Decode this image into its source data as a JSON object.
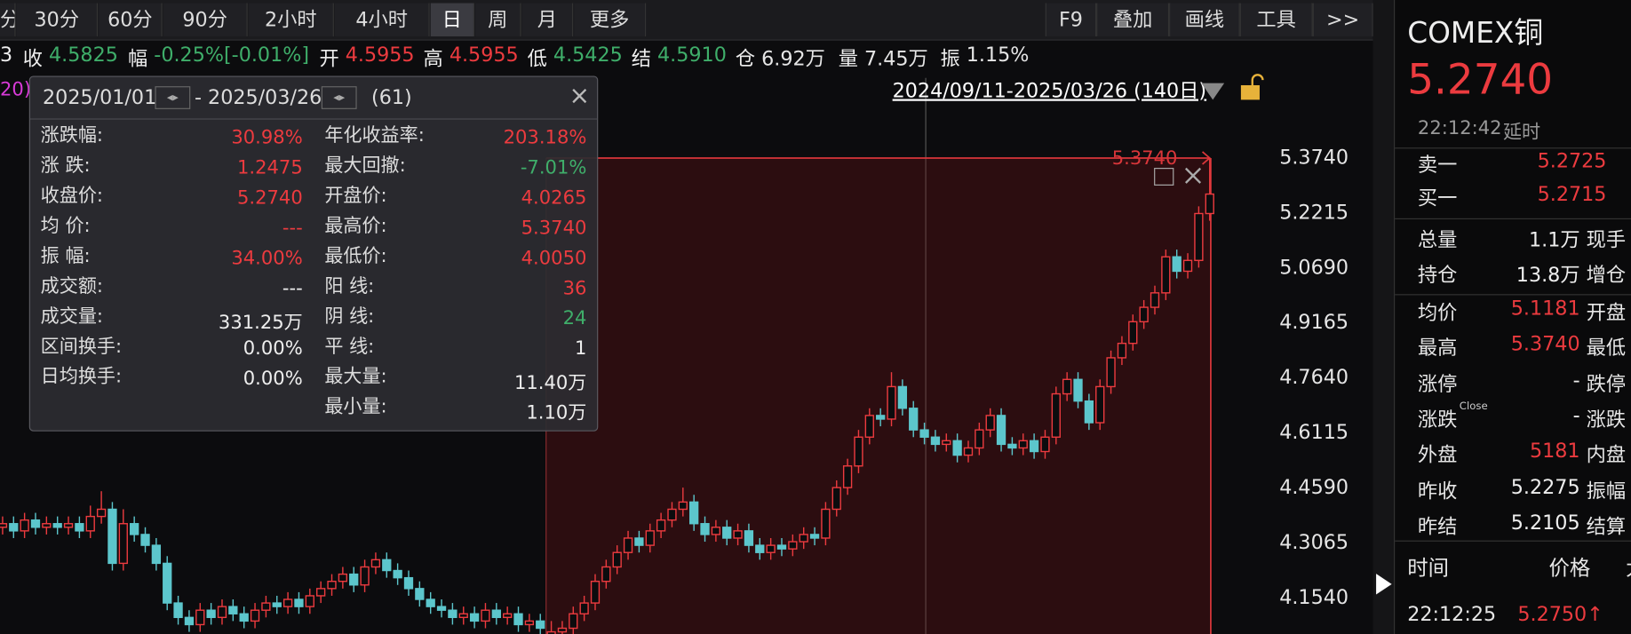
{
  "toolbar": {
    "periods": [
      "分",
      "30分",
      "60分",
      "90分",
      "2小时",
      "4小时",
      "日",
      "周",
      "月",
      "更多"
    ],
    "selected": 6,
    "tools": [
      "F9",
      "叠加",
      "画线",
      "工具",
      ">>"
    ]
  },
  "info_bar": {
    "prefix": "3",
    "items": [
      {
        "label": "收",
        "value": "4.5825",
        "color": "#3fae6a"
      },
      {
        "label": "幅",
        "value": "-0.25%[-0.01%]",
        "color": "#3fae6a"
      },
      {
        "label": "开",
        "value": "4.5955",
        "color": "#ec3b3f"
      },
      {
        "label": "高",
        "value": "4.5955",
        "color": "#ec3b3f"
      },
      {
        "label": "低",
        "value": "4.5425",
        "color": "#3fae6a"
      },
      {
        "label": "结",
        "value": "4.5910",
        "color": "#3fae6a"
      },
      {
        "label": "仓",
        "value": "6.92万",
        "color": "#e6e6e6"
      },
      {
        "label": "量",
        "value": "7.45万",
        "color": "#e6e6e6"
      },
      {
        "label": "振",
        "value": "1.15%",
        "color": "#e6e6e6"
      }
    ]
  },
  "ma_label": "20)",
  "chart_data": {
    "type": "candlestick",
    "range_label": "2024/09/11-2025/03/26 (140日)",
    "up_color": "#ec3b3f",
    "down_color": "#5cc6cc",
    "ylim": [
      4.054,
      5.596
    ],
    "yticks": [
      {
        "value": 5.374,
        "label": "5.3740"
      },
      {
        "value": 5.2215,
        "label": "5.2215"
      },
      {
        "value": 5.069,
        "label": "5.0690"
      },
      {
        "value": 4.9165,
        "label": "4.9165"
      },
      {
        "value": 4.764,
        "label": "4.7640"
      },
      {
        "value": 4.6115,
        "label": "4.6115"
      },
      {
        "value": 4.459,
        "label": "4.4590"
      },
      {
        "value": 4.3065,
        "label": "4.3065"
      },
      {
        "value": 4.154,
        "label": "4.1540"
      }
    ],
    "max_marker": {
      "value": 5.374,
      "label": "5.3740"
    },
    "candles": [
      [
        4.35,
        4.38,
        4.33,
        4.36
      ],
      [
        4.36,
        4.38,
        4.32,
        4.34
      ],
      [
        4.34,
        4.39,
        4.32,
        4.37
      ],
      [
        4.37,
        4.39,
        4.33,
        4.35
      ],
      [
        4.35,
        4.38,
        4.33,
        4.36
      ],
      [
        4.36,
        4.38,
        4.33,
        4.35
      ],
      [
        4.35,
        4.38,
        4.33,
        4.36
      ],
      [
        4.36,
        4.38,
        4.32,
        4.34
      ],
      [
        4.34,
        4.41,
        4.32,
        4.38
      ],
      [
        4.38,
        4.45,
        4.36,
        4.4
      ],
      [
        4.4,
        4.42,
        4.23,
        4.25
      ],
      [
        4.25,
        4.4,
        4.23,
        4.36
      ],
      [
        4.36,
        4.38,
        4.31,
        4.33
      ],
      [
        4.33,
        4.35,
        4.28,
        4.3
      ],
      [
        4.3,
        4.32,
        4.23,
        4.25
      ],
      [
        4.25,
        4.27,
        4.12,
        4.14
      ],
      [
        4.14,
        4.16,
        4.08,
        4.1
      ],
      [
        4.1,
        4.12,
        4.06,
        4.08
      ],
      [
        4.08,
        4.14,
        4.06,
        4.12
      ],
      [
        4.12,
        4.14,
        4.08,
        4.1
      ],
      [
        4.1,
        4.15,
        4.08,
        4.13
      ],
      [
        4.13,
        4.15,
        4.09,
        4.11
      ],
      [
        4.11,
        4.13,
        4.07,
        4.09
      ],
      [
        4.09,
        4.14,
        4.07,
        4.12
      ],
      [
        4.12,
        4.16,
        4.1,
        4.14
      ],
      [
        4.14,
        4.16,
        4.11,
        4.13
      ],
      [
        4.13,
        4.17,
        4.11,
        4.15
      ],
      [
        4.15,
        4.17,
        4.11,
        4.13
      ],
      [
        4.13,
        4.18,
        4.11,
        4.16
      ],
      [
        4.16,
        4.2,
        4.14,
        4.18
      ],
      [
        4.18,
        4.22,
        4.16,
        4.2
      ],
      [
        4.2,
        4.24,
        4.18,
        4.22
      ],
      [
        4.22,
        4.24,
        4.17,
        4.19
      ],
      [
        4.19,
        4.26,
        4.17,
        4.24
      ],
      [
        4.24,
        4.28,
        4.22,
        4.26
      ],
      [
        4.26,
        4.28,
        4.21,
        4.23
      ],
      [
        4.23,
        4.25,
        4.19,
        4.21
      ],
      [
        4.21,
        4.23,
        4.16,
        4.18
      ],
      [
        4.18,
        4.2,
        4.13,
        4.15
      ],
      [
        4.15,
        4.17,
        4.11,
        4.13
      ],
      [
        4.13,
        4.15,
        4.1,
        4.12
      ],
      [
        4.12,
        4.14,
        4.08,
        4.1
      ],
      [
        4.1,
        4.13,
        4.08,
        4.11
      ],
      [
        4.11,
        4.13,
        4.07,
        4.09
      ],
      [
        4.09,
        4.14,
        4.07,
        4.12
      ],
      [
        4.12,
        4.14,
        4.08,
        4.1
      ],
      [
        4.1,
        4.13,
        4.08,
        4.11
      ],
      [
        4.11,
        4.13,
        4.06,
        4.08
      ],
      [
        4.08,
        4.11,
        4.06,
        4.09
      ],
      [
        4.09,
        4.11,
        4.05,
        4.07
      ],
      [
        4.0265,
        4.09,
        4.005,
        4.06
      ],
      [
        4.06,
        4.09,
        4.04,
        4.07
      ],
      [
        4.07,
        4.13,
        4.05,
        4.11
      ],
      [
        4.11,
        4.16,
        4.09,
        4.14
      ],
      [
        4.14,
        4.22,
        4.12,
        4.2
      ],
      [
        4.2,
        4.26,
        4.18,
        4.24
      ],
      [
        4.24,
        4.3,
        4.22,
        4.28
      ],
      [
        4.28,
        4.34,
        4.26,
        4.32
      ],
      [
        4.32,
        4.34,
        4.28,
        4.3
      ],
      [
        4.3,
        4.36,
        4.28,
        4.34
      ],
      [
        4.34,
        4.39,
        4.32,
        4.37
      ],
      [
        4.37,
        4.42,
        4.35,
        4.4
      ],
      [
        4.4,
        4.46,
        4.38,
        4.42
      ],
      [
        4.42,
        4.44,
        4.34,
        4.36
      ],
      [
        4.36,
        4.38,
        4.31,
        4.33
      ],
      [
        4.33,
        4.37,
        4.31,
        4.35
      ],
      [
        4.35,
        4.37,
        4.3,
        4.32
      ],
      [
        4.32,
        4.36,
        4.3,
        4.34
      ],
      [
        4.34,
        4.36,
        4.28,
        4.3
      ],
      [
        4.3,
        4.32,
        4.26,
        4.28
      ],
      [
        4.28,
        4.32,
        4.26,
        4.3
      ],
      [
        4.3,
        4.32,
        4.27,
        4.29
      ],
      [
        4.29,
        4.33,
        4.27,
        4.31
      ],
      [
        4.31,
        4.35,
        4.29,
        4.33
      ],
      [
        4.33,
        4.35,
        4.3,
        4.32
      ],
      [
        4.32,
        4.42,
        4.3,
        4.4
      ],
      [
        4.4,
        4.48,
        4.38,
        4.46
      ],
      [
        4.46,
        4.54,
        4.44,
        4.52
      ],
      [
        4.52,
        4.62,
        4.5,
        4.6
      ],
      [
        4.6,
        4.68,
        4.58,
        4.66
      ],
      [
        4.66,
        4.68,
        4.63,
        4.65
      ],
      [
        4.65,
        4.78,
        4.63,
        4.74
      ],
      [
        4.74,
        4.76,
        4.66,
        4.68
      ],
      [
        4.68,
        4.7,
        4.6,
        4.62
      ],
      [
        4.62,
        4.64,
        4.58,
        4.6
      ],
      [
        4.6,
        4.62,
        4.56,
        4.58
      ],
      [
        4.58,
        4.61,
        4.56,
        4.59
      ],
      [
        4.59,
        4.61,
        4.53,
        4.55
      ],
      [
        4.55,
        4.59,
        4.53,
        4.57
      ],
      [
        4.57,
        4.64,
        4.55,
        4.62
      ],
      [
        4.62,
        4.68,
        4.6,
        4.66
      ],
      [
        4.66,
        4.68,
        4.56,
        4.58
      ],
      [
        4.58,
        4.6,
        4.55,
        4.57
      ],
      [
        4.57,
        4.61,
        4.55,
        4.59
      ],
      [
        4.59,
        4.61,
        4.54,
        4.56
      ],
      [
        4.56,
        4.62,
        4.54,
        4.6
      ],
      [
        4.6,
        4.74,
        4.58,
        4.72
      ],
      [
        4.72,
        4.78,
        4.7,
        4.76
      ],
      [
        4.76,
        4.78,
        4.68,
        4.7
      ],
      [
        4.7,
        4.72,
        4.62,
        4.64
      ],
      [
        4.64,
        4.76,
        4.62,
        4.74
      ],
      [
        4.74,
        4.84,
        4.72,
        4.82
      ],
      [
        4.82,
        4.88,
        4.8,
        4.86
      ],
      [
        4.86,
        4.94,
        4.84,
        4.92
      ],
      [
        4.92,
        4.98,
        4.9,
        4.96
      ],
      [
        4.96,
        5.02,
        4.94,
        5.0
      ],
      [
        5.0,
        5.12,
        4.98,
        5.1
      ],
      [
        5.1,
        5.12,
        5.04,
        5.06
      ],
      [
        5.06,
        5.11,
        5.04,
        5.09
      ],
      [
        5.09,
        5.24,
        5.07,
        5.22
      ],
      [
        5.22,
        5.374,
        5.2,
        5.274
      ]
    ]
  },
  "stats_panel": {
    "start_date": "2025/01/01",
    "end_date": "- 2025/03/26",
    "count": "(61)",
    "left": [
      {
        "label": "涨跌幅:",
        "value": "30.98%",
        "color": "#ec3b3f"
      },
      {
        "label": "涨 跌:",
        "value": "1.2475",
        "color": "#ec3b3f"
      },
      {
        "label": "收盘价:",
        "value": "5.2740",
        "color": "#ec3b3f"
      },
      {
        "label": "均 价:",
        "value": "---",
        "color": "#ec3b3f"
      },
      {
        "label": "振 幅:",
        "value": "34.00%",
        "color": "#ec3b3f"
      },
      {
        "label": "成交额:",
        "value": "---",
        "color": "#eeeeee"
      },
      {
        "label": "成交量:",
        "value": "331.25万",
        "color": "#eeeeee"
      },
      {
        "label": "区间换手:",
        "value": "0.00%",
        "color": "#eeeeee"
      },
      {
        "label": "日均换手:",
        "value": "0.00%",
        "color": "#eeeeee"
      }
    ],
    "right": [
      {
        "label": "年化收益率:",
        "value": "203.18%",
        "color": "#ec3b3f"
      },
      {
        "label": "最大回撤:",
        "value": "-7.01%",
        "color": "#3fae6a"
      },
      {
        "label": "开盘价:",
        "value": "4.0265",
        "color": "#ec3b3f"
      },
      {
        "label": "最高价:",
        "value": "5.3740",
        "color": "#ec3b3f"
      },
      {
        "label": "最低价:",
        "value": "4.0050",
        "color": "#ec3b3f"
      },
      {
        "label": "阳 线:",
        "value": "36",
        "color": "#ec3b3f"
      },
      {
        "label": "阴 线:",
        "value": "24",
        "color": "#3fae6a"
      },
      {
        "label": "平 线:",
        "value": "1",
        "color": "#eeeeee"
      },
      {
        "label": "最大量:",
        "value": "11.40万",
        "color": "#eeeeee"
      },
      {
        "label": "最小量:",
        "value": "1.10万",
        "color": "#eeeeee"
      }
    ]
  },
  "quote_panel": {
    "name": "COMEX铜",
    "price": "5.2740",
    "time": "22:12:42",
    "status": "延时",
    "orderbook": [
      {
        "label": "卖一",
        "value": "5.2725"
      },
      {
        "label": "买一",
        "value": "5.2715"
      }
    ],
    "volume": [
      {
        "label": "总量",
        "value": "1.1万",
        "label2": "现手"
      },
      {
        "label": "持仓",
        "value": "13.8万",
        "label2": "增仓"
      }
    ],
    "details": [
      {
        "label": "均价",
        "value": "5.1181",
        "color": "#ec3b3f",
        "label2": "开盘"
      },
      {
        "label": "最高",
        "value": "5.3740",
        "color": "#ec3b3f",
        "label2": "最低"
      },
      {
        "label": "涨停",
        "value": "-",
        "color": "#eeeeee",
        "label2": "跌停"
      },
      {
        "label": "涨跌",
        "sup": "Close",
        "value": "-",
        "color": "#eeeeee",
        "label2": "涨跌"
      },
      {
        "label": "外盘",
        "value": "5181",
        "color": "#ec3b3f",
        "label2": "内盘"
      },
      {
        "label": "昨收",
        "value": "5.2275",
        "color": "#eeeeee",
        "label2": "振幅"
      },
      {
        "label": "昨结",
        "value": "5.2105",
        "color": "#eeeeee",
        "label2": "结算"
      }
    ],
    "tick_header": [
      "时间",
      "价格",
      "大"
    ],
    "last_tick": {
      "time": "22:12:25",
      "price": "5.2750↑"
    }
  }
}
